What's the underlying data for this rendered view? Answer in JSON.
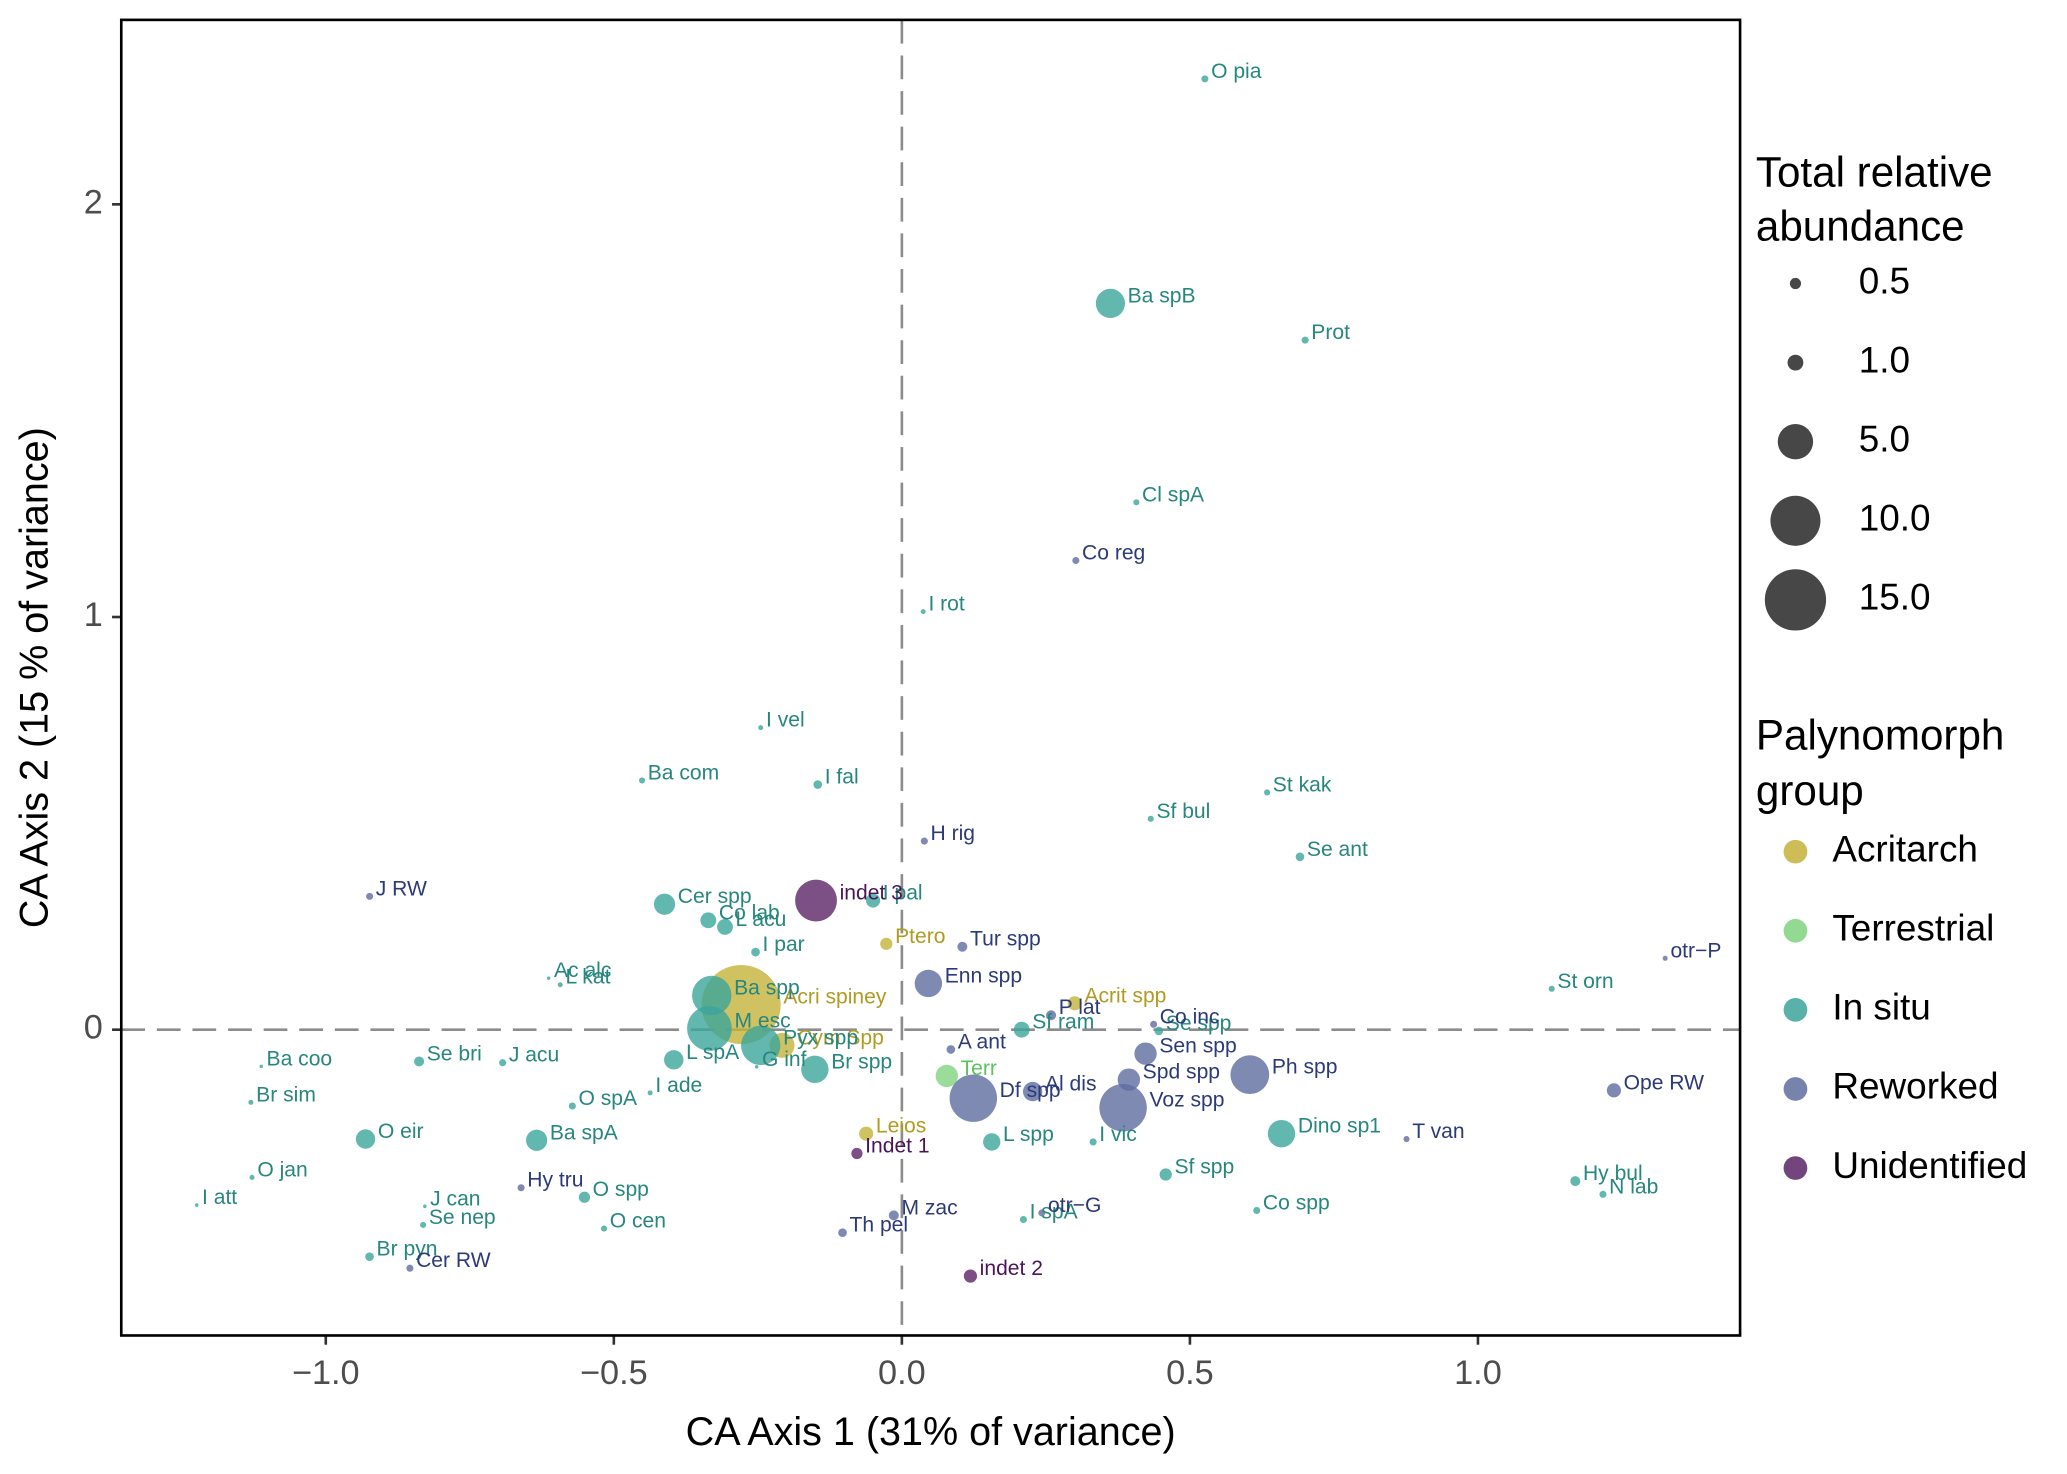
{
  "chart_data": {
    "type": "scatter",
    "x_label": "CA Axis 1 (31% of variance)",
    "y_label": "CA Axis 2 (15 % of variance)",
    "xlim": [
      -1.355,
      1.455
    ],
    "ylim": [
      -0.741,
      2.447
    ],
    "xticks": [
      {
        "value": -1.0,
        "label": "−1.0"
      },
      {
        "value": -0.5,
        "label": "−0.5"
      },
      {
        "value": 0.0,
        "label": "0.0"
      },
      {
        "value": 0.5,
        "label": "0.5"
      },
      {
        "value": 1.0,
        "label": "1.0"
      }
    ],
    "yticks": [
      0,
      1,
      2
    ],
    "hline": 0,
    "vline": 0,
    "size_legend": {
      "title": [
        "Total relative",
        "abundance"
      ],
      "values": [
        0.5,
        {
          "value": 1.0,
          "label": "1.0"
        },
        {
          "value": 5.0,
          "label": "5.0"
        },
        {
          "value": 10.0,
          "label": "10.0"
        },
        {
          "value": 15.0,
          "label": "15.0"
        }
      ]
    },
    "color_legend_title": [
      "Palynomorph",
      "group"
    ],
    "series": [
      {
        "name": "Acritarch",
        "color": "#c4b13a",
        "label_color": "#b09c22",
        "labels": [
          "Acri spiney",
          "Cym Spp",
          "Ptero",
          "Acrit spp",
          "Leios"
        ],
        "x": [
          -0.279,
          -0.208,
          -0.027,
          0.3,
          -0.062
        ],
        "y": [
          0.061,
          -0.038,
          0.208,
          0.064,
          -0.252
        ],
        "sizes": [
          25,
          2.5,
          0.6,
          0.8,
          0.8
        ]
      },
      {
        "name": "Terrestrial",
        "color": "#7fd47f",
        "label_color": "#5cc35c",
        "labels": [
          "Terr"
        ],
        "x": [
          0.078
        ],
        "y": [
          -0.112
        ],
        "sizes": [
          2.0
        ]
      },
      {
        "name": "In situ",
        "color": "#3ba59b",
        "label_color": "#27877f",
        "labels": [
          "O pia",
          "Ba spB",
          "Prot",
          "Cl spA",
          "I rot",
          "I vel",
          "Ba com",
          "I fal",
          "Sf bul",
          "St kak",
          "Se ant",
          "Cer spp",
          "Co lab",
          "L acu",
          "I pal",
          "I par",
          "Ac alc",
          "L kat",
          "Ba spp",
          "M esc",
          "Pyx spp",
          "St orn",
          "Se spp",
          "Sf ram",
          "Br spp",
          "L spA",
          "Ba coo",
          "Se bri",
          "J acu",
          "Br sim",
          "O spA",
          "I ade",
          "O eir",
          "Ba spA",
          "O jan",
          "I att",
          "J can",
          "Se nep",
          "O spp",
          "O cen",
          "Br pyn",
          "L spp",
          "I vic",
          "Sf spp",
          "Dino sp1",
          "Co spp",
          "I spA",
          "Hy bul",
          "N lab",
          "G inf"
        ],
        "x": [
          0.526,
          0.362,
          0.7,
          0.407,
          0.037,
          -0.245,
          -0.451,
          -0.146,
          0.432,
          0.634,
          0.691,
          -0.412,
          -0.336,
          -0.307,
          -0.05,
          -0.254,
          -0.613,
          -0.593,
          -0.33,
          -0.334,
          -0.245,
          1.128,
          0.446,
          0.208,
          -0.151,
          -0.396,
          -1.112,
          -0.838,
          -0.693,
          -1.13,
          -0.572,
          -0.437,
          -0.931,
          -0.634,
          -1.128,
          -1.224,
          -0.828,
          -0.831,
          -0.551,
          -0.517,
          -0.924,
          0.156,
          0.332,
          0.458,
          0.659,
          0.616,
          0.211,
          1.169,
          1.217,
          -0.252
        ],
        "y": [
          2.304,
          1.76,
          1.671,
          1.278,
          1.013,
          0.732,
          0.604,
          0.594,
          0.511,
          0.575,
          0.419,
          0.304,
          0.265,
          0.249,
          0.313,
          0.188,
          0.125,
          0.109,
          0.083,
          0.003,
          -0.038,
          0.099,
          -0.003,
          0.0,
          -0.096,
          -0.073,
          -0.089,
          -0.077,
          -0.08,
          -0.176,
          -0.185,
          -0.153,
          -0.265,
          -0.268,
          -0.358,
          -0.425,
          -0.428,
          -0.473,
          -0.406,
          -0.482,
          -0.55,
          -0.272,
          -0.272,
          -0.351,
          -0.252,
          -0.438,
          -0.46,
          -0.367,
          -0.399,
          -0.09
        ],
        "sizes": [
          0.2,
          3.4,
          0.2,
          0.15,
          0.1,
          0.1,
          0.15,
          0.3,
          0.15,
          0.15,
          0.3,
          1.8,
          1.0,
          1.0,
          0.8,
          0.3,
          0.05,
          0.1,
          6.2,
          8,
          6.2,
          0.15,
          0.3,
          1.0,
          3.0,
          1.5,
          0.05,
          0.4,
          0.2,
          0.1,
          0.2,
          0.1,
          1.5,
          1.8,
          0.1,
          0.05,
          0.05,
          0.15,
          0.5,
          0.15,
          0.3,
          1.2,
          0.2,
          0.6,
          3.0,
          0.2,
          0.2,
          0.4,
          0.2,
          0.05
        ]
      },
      {
        "name": "Reworked",
        "color": "#5e6d9f",
        "label_color": "#2d3a78",
        "labels": [
          "Co reg",
          "H rig",
          "J RW",
          "Tur spp",
          "Enn spp",
          "P lat",
          "otr−P",
          "Co inc",
          "A ant",
          "Sen spp",
          "Ph spp",
          "Al dis",
          "Spd spp",
          "Df spp",
          "Voz spp",
          "Ope  RW",
          "T van",
          "Hy tru",
          "otr−G",
          "M zac",
          "Th pel",
          "Cer RW"
        ],
        "x": [
          0.302,
          0.039,
          -0.924,
          0.105,
          0.046,
          0.259,
          1.325,
          0.437,
          0.085,
          0.423,
          0.604,
          0.227,
          0.394,
          0.124,
          0.384,
          1.236,
          0.876,
          -0.661,
          0.243,
          -0.014,
          -0.103,
          -0.854
        ],
        "y": [
          1.137,
          0.457,
          0.323,
          0.201,
          0.112,
          0.035,
          0.173,
          0.013,
          -0.048,
          -0.058,
          -0.109,
          -0.15,
          -0.121,
          -0.166,
          -0.189,
          -0.147,
          -0.265,
          -0.383,
          -0.444,
          -0.45,
          -0.492,
          -0.578
        ],
        "sizes": [
          0.2,
          0.2,
          0.2,
          0.4,
          3.0,
          0.4,
          0.1,
          0.2,
          0.3,
          2.0,
          6.0,
          1.5,
          2.0,
          9,
          9,
          0.8,
          0.15,
          0.2,
          0.2,
          0.4,
          0.3,
          0.2
        ]
      },
      {
        "name": "Unidentified",
        "color": "#5b2466",
        "label_color": "#4a1558",
        "labels": [
          "indet 3",
          "Indet 1",
          "indet 2"
        ],
        "x": [
          -0.149,
          -0.078,
          0.119
        ],
        "y": [
          0.313,
          -0.3,
          -0.597
        ],
        "sizes": [
          7,
          0.5,
          0.7
        ]
      }
    ]
  }
}
